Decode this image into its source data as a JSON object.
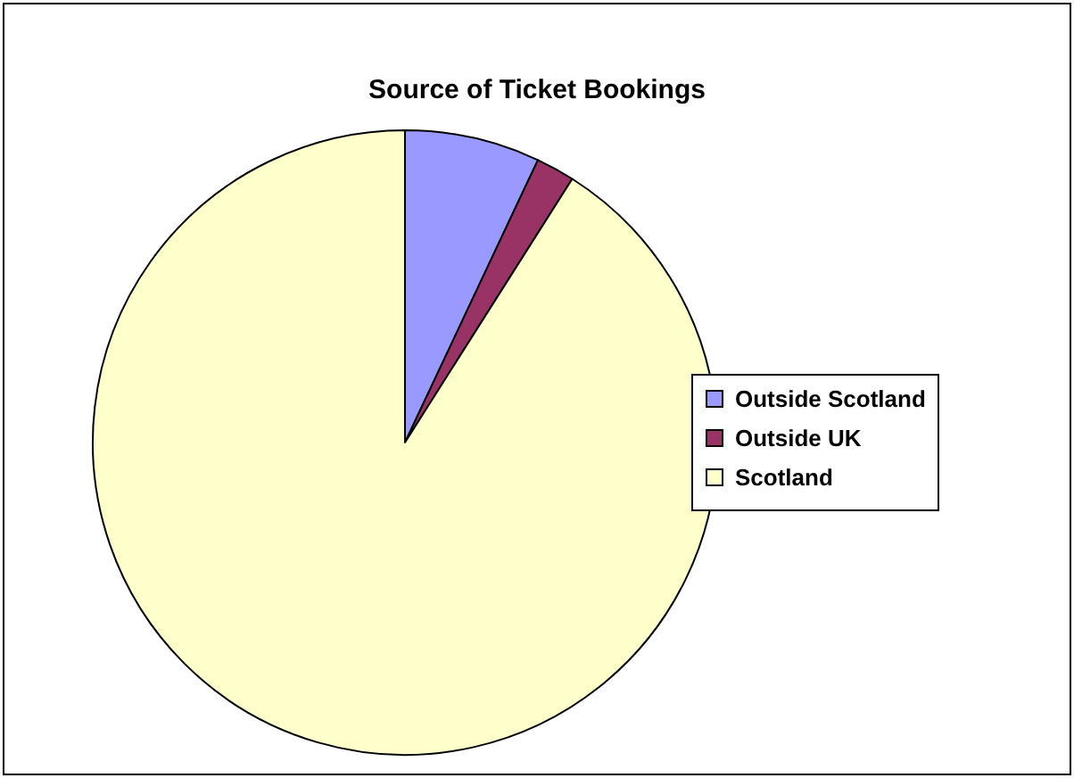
{
  "chart_data": {
    "type": "pie",
    "title": "Source of Ticket Bookings",
    "categories": [
      "Outside Scotland",
      "Outside UK",
      "Scotland"
    ],
    "values": [
      7,
      2,
      91
    ],
    "colors": [
      "#9999ff",
      "#993366",
      "#ffffcc"
    ],
    "legend": "right"
  }
}
